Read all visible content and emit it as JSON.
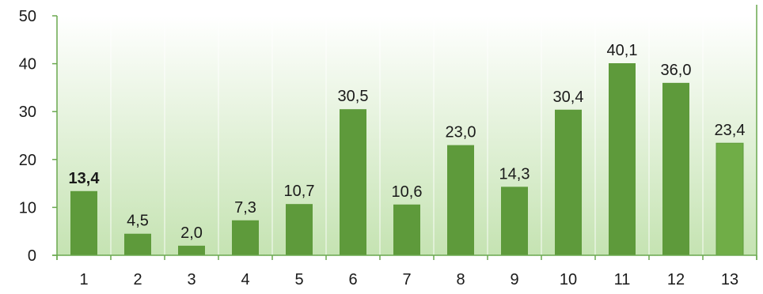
{
  "chart_data": {
    "type": "bar",
    "categories": [
      "1",
      "2",
      "3",
      "4",
      "5",
      "6",
      "7",
      "8",
      "9",
      "10",
      "11",
      "12",
      "13"
    ],
    "values": [
      13.4,
      4.5,
      2.0,
      7.3,
      10.7,
      30.5,
      10.6,
      23.0,
      14.3,
      30.4,
      40.1,
      36.0,
      23.4
    ],
    "data_labels": [
      "13,4",
      "4,5",
      "2,0",
      "7,3",
      "10,7",
      "30,5",
      "10,6",
      "23,0",
      "14,3",
      "30,4",
      "40,1",
      "36,0",
      "23,4"
    ],
    "bold_label_indices": [
      0
    ],
    "y_ticks": [
      "0",
      "10",
      "20",
      "30",
      "40",
      "50"
    ],
    "ylim": [
      0,
      50
    ],
    "title": "",
    "xlabel": "",
    "ylabel": "",
    "grid": true,
    "bar_color": "#5e9a3b",
    "highlight_bar_color": "#70ad47",
    "highlight_bar_indices": [
      12
    ],
    "background_top_color": "#ffffff",
    "background_bottom_color": "#c5e3b2"
  }
}
